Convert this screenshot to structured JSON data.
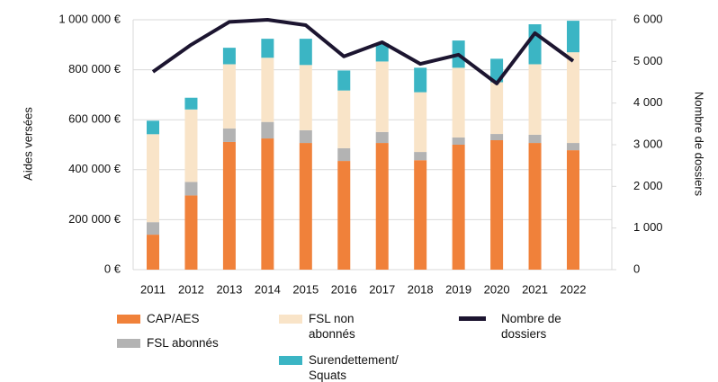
{
  "chart_data": {
    "type": "bar",
    "categories": [
      "2011",
      "2012",
      "2013",
      "2014",
      "2015",
      "2016",
      "2017",
      "2018",
      "2019",
      "2020",
      "2021",
      "2022"
    ],
    "stacked": true,
    "series": [
      {
        "name": "CAP/AES",
        "color": "#f0813a",
        "values": [
          140000,
          297000,
          511000,
          525000,
          507000,
          435000,
          507000,
          438000,
          500000,
          518000,
          507000,
          478000
        ]
      },
      {
        "name": "FSL abonnés",
        "color": "#b3b3b3",
        "values": [
          50000,
          54000,
          54000,
          66000,
          51000,
          51000,
          44000,
          33000,
          29000,
          25000,
          33000,
          29000
        ]
      },
      {
        "name": "FSL non abonnés",
        "color": "#f9e4c8",
        "values": [
          352000,
          290000,
          257000,
          257000,
          261000,
          231000,
          282000,
          239000,
          279000,
          207000,
          282000,
          363000
        ]
      },
      {
        "name": "Surendettement/ Squats",
        "color": "#3bb5c4",
        "values": [
          54000,
          47000,
          66000,
          76000,
          105000,
          80000,
          73000,
          98000,
          109000,
          94000,
          160000,
          126000
        ]
      },
      {
        "name": "Nombre de dossiers",
        "color": "#1c1530",
        "type": "line",
        "axis": "y2",
        "values": [
          4750,
          5400,
          5950,
          6000,
          5870,
          5120,
          5460,
          4940,
          5160,
          4470,
          5680,
          5010
        ]
      }
    ],
    "ylabel": "Aides versées",
    "y2label": "Nombre de dossiers",
    "ylim": [
      0,
      1000000
    ],
    "yticks": [
      {
        "value": 0,
        "label": "0 €"
      },
      {
        "value": 200000,
        "label": "200 000 €"
      },
      {
        "value": 400000,
        "label": "400 000 €"
      },
      {
        "value": 600000,
        "label": "600 000 €"
      },
      {
        "value": 800000,
        "label": "800 000 €"
      },
      {
        "value": 1000000,
        "label": "1 000 000 €"
      }
    ],
    "y2lim": [
      0,
      6000
    ],
    "y2ticks": [
      0,
      {
        "value": 1000,
        "label": "1 000"
      },
      {
        "value": 2000,
        "label": "2 000"
      },
      {
        "value": 3000,
        "label": "3 000"
      },
      {
        "value": 4000,
        "label": "4 000"
      },
      {
        "value": 5000,
        "label": "5 000"
      },
      {
        "value": 6000,
        "label": "6 000"
      }
    ],
    "grid": true
  }
}
